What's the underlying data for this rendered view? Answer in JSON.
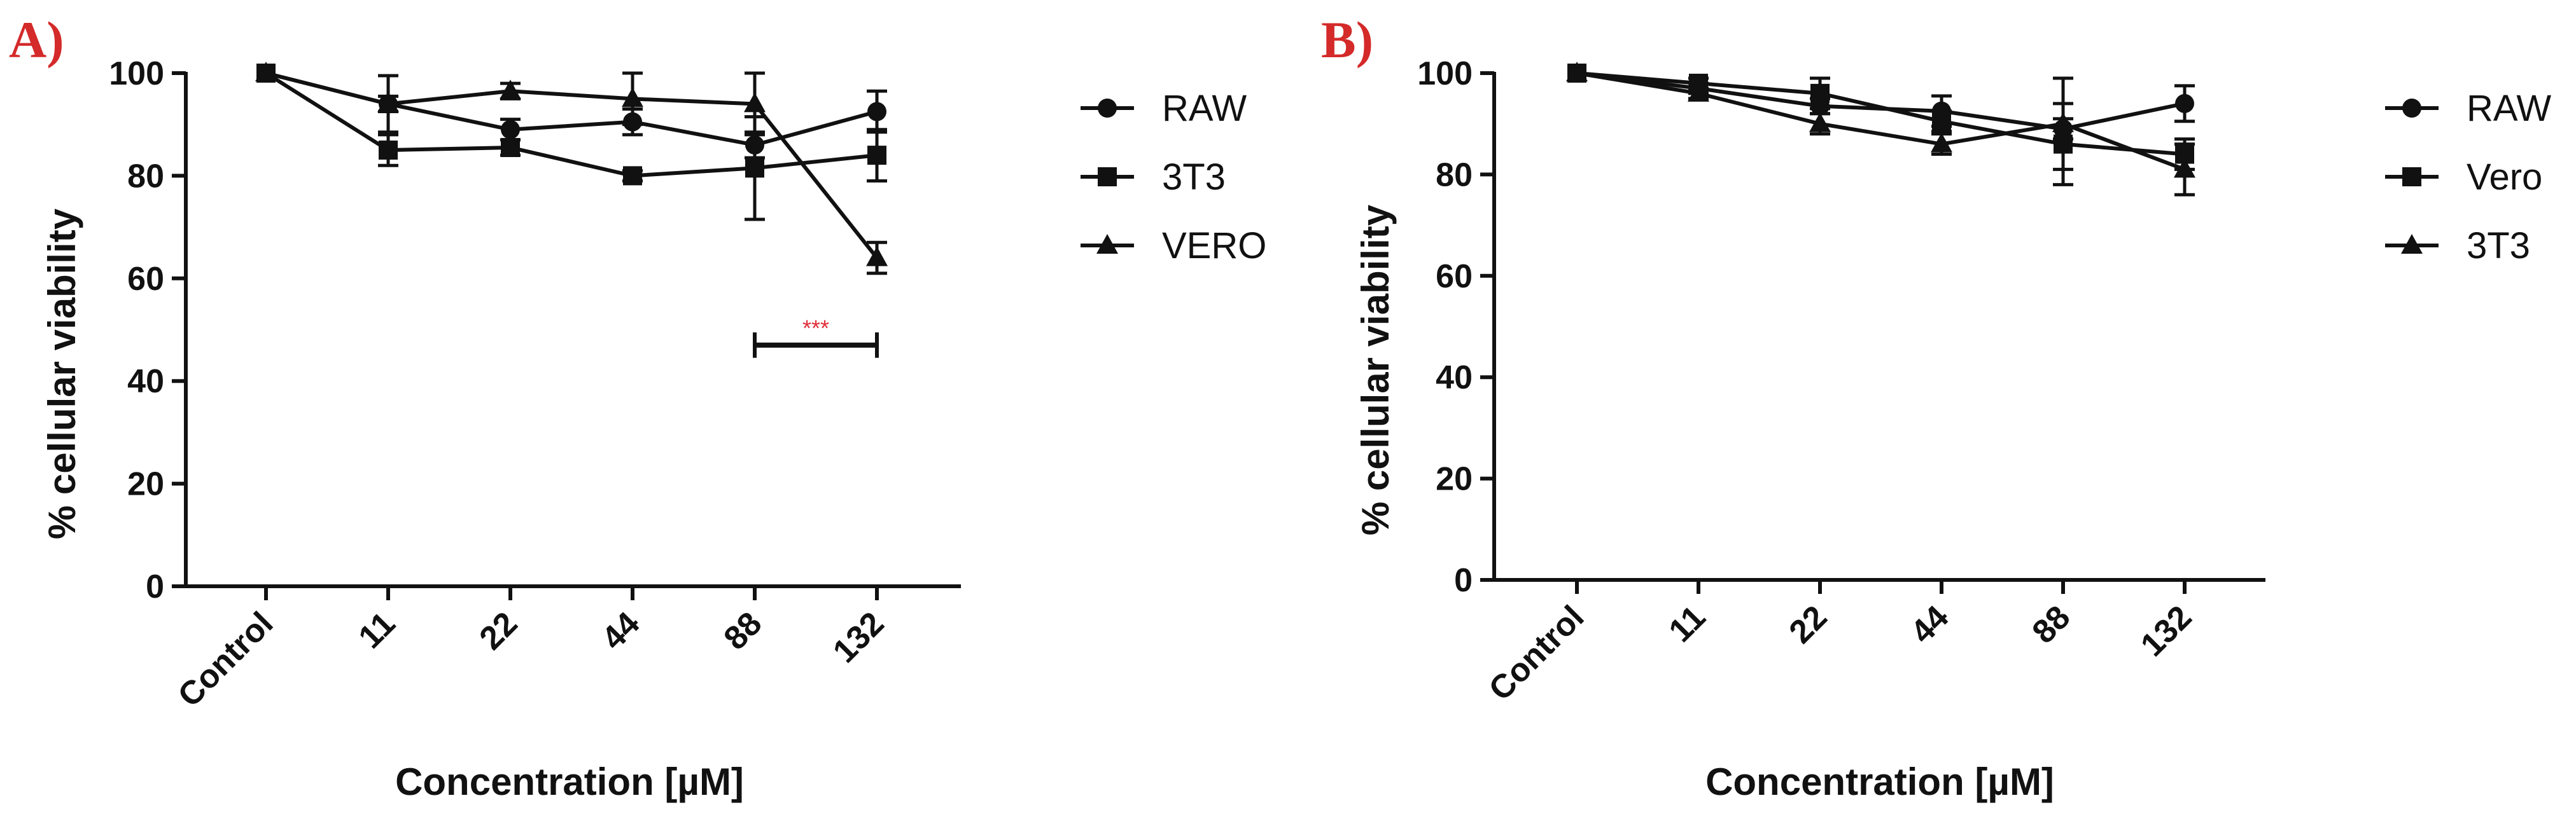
{
  "chart_data": [
    {
      "panel_label": "A)",
      "type": "line",
      "categories": [
        "Control",
        "11",
        "22",
        "44",
        "88",
        "132"
      ],
      "xlabel": "Concentration [µM]",
      "ylabel": "% cellular viability",
      "ylim": [
        0,
        100
      ],
      "yticks": [
        0,
        20,
        40,
        60,
        80,
        100
      ],
      "grid": false,
      "legend_position": "right",
      "series": [
        {
          "name": "RAW",
          "marker": "circle",
          "values": [
            100,
            94,
            89,
            90.5,
            86,
            92.5
          ],
          "errors": [
            0,
            1.5,
            2,
            2.5,
            2.5,
            4
          ]
        },
        {
          "name": "3T3",
          "marker": "square",
          "values": [
            100,
            85,
            85.5,
            80,
            81.5,
            84
          ],
          "errors": [
            0,
            3,
            1.5,
            1,
            10,
            5
          ]
        },
        {
          "name": "VERO",
          "marker": "triangle",
          "values": [
            100,
            94,
            96.5,
            95,
            94,
            64
          ],
          "errors": [
            0,
            5.5,
            1.5,
            5,
            6,
            3
          ]
        }
      ],
      "annotation": {
        "text": "***",
        "from": "88",
        "to": "132",
        "y": 47
      }
    },
    {
      "panel_label": "B)",
      "type": "line",
      "categories": [
        "Control",
        "11",
        "22",
        "44",
        "88",
        "132"
      ],
      "xlabel": "Concentration [µM]",
      "ylabel": "% cellular viability",
      "ylim": [
        0,
        100
      ],
      "yticks": [
        0,
        20,
        40,
        60,
        80,
        100
      ],
      "grid": false,
      "legend_position": "right",
      "series": [
        {
          "name": "RAW",
          "marker": "circle",
          "values": [
            100,
            97,
            93.5,
            92.5,
            89,
            94
          ],
          "errors": [
            0,
            1,
            1.5,
            3,
            2,
            3.5
          ]
        },
        {
          "name": "Vero",
          "marker": "square",
          "values": [
            100,
            98,
            96,
            90.5,
            86,
            84
          ],
          "errors": [
            0,
            1,
            3,
            2,
            8,
            3
          ]
        },
        {
          "name": "3T3",
          "marker": "triangle",
          "values": [
            100,
            96,
            90,
            86,
            90,
            81
          ],
          "errors": [
            0,
            1,
            2,
            2,
            9,
            5
          ]
        }
      ]
    }
  ]
}
